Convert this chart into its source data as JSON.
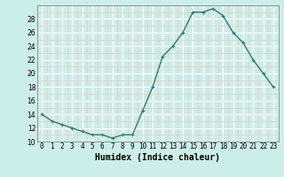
{
  "x": [
    0,
    1,
    2,
    3,
    4,
    5,
    6,
    7,
    8,
    9,
    10,
    11,
    12,
    13,
    14,
    15,
    16,
    17,
    18,
    19,
    20,
    21,
    22,
    23
  ],
  "y": [
    14,
    13,
    12.5,
    12,
    11.5,
    11,
    11,
    10.5,
    11,
    11,
    14.5,
    18,
    22.5,
    24,
    26,
    29,
    29,
    29.5,
    28.5,
    26,
    24.5,
    22,
    20,
    18
  ],
  "line_color": "#2e7d6e",
  "marker": "+",
  "bg_color": "#cceee8",
  "grid_major_color": "#ffffff",
  "grid_minor_color": "#e8c8c8",
  "xlabel": "Humidex (Indice chaleur)",
  "xlim": [
    -0.5,
    23.5
  ],
  "ylim": [
    10,
    30
  ],
  "yticks": [
    10,
    12,
    14,
    16,
    18,
    20,
    22,
    24,
    26,
    28
  ],
  "xticks": [
    0,
    1,
    2,
    3,
    4,
    5,
    6,
    7,
    8,
    9,
    10,
    11,
    12,
    13,
    14,
    15,
    16,
    17,
    18,
    19,
    20,
    21,
    22,
    23
  ],
  "xtick_labels": [
    "0",
    "1",
    "2",
    "3",
    "4",
    "5",
    "6",
    "7",
    "8",
    "9",
    "10",
    "11",
    "12",
    "13",
    "14",
    "15",
    "16",
    "17",
    "18",
    "19",
    "20",
    "21",
    "22",
    "23"
  ],
  "label_fontsize": 7,
  "tick_fontsize": 5.5,
  "linewidth": 1.0,
  "markersize": 3,
  "markeredgewidth": 0.8
}
